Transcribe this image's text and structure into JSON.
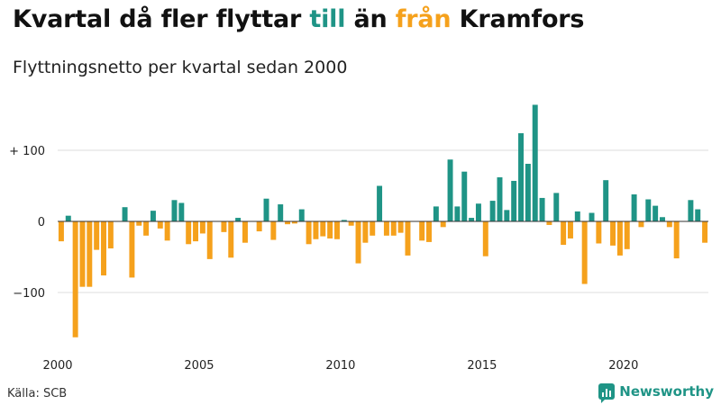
{
  "title": {
    "part1": "Kvartal då fler flyttar ",
    "till": "till",
    "part2": " än ",
    "fran": "från",
    "part3": " Kramfors"
  },
  "subtitle": "Flyttningsnetto per kvartal sedan 2000",
  "source": "Källa: SCB",
  "brand": "Newsworthy",
  "colors": {
    "positive": "#1f9486",
    "negative": "#f5a11c",
    "grid": "#dddddd",
    "zero": "#333333"
  },
  "chart_data": {
    "type": "bar",
    "ylim": [
      -170,
      170
    ],
    "y_ticks": [
      {
        "value": 100,
        "label": "+ 100"
      },
      {
        "value": 0,
        "label": "0"
      },
      {
        "value": -100,
        "label": "−100"
      }
    ],
    "x_ticks": [
      {
        "year": 2000,
        "label": "2000"
      },
      {
        "year": 2005,
        "label": "2005"
      },
      {
        "year": 2010,
        "label": "2010"
      },
      {
        "year": 2015,
        "label": "2015"
      },
      {
        "year": 2020,
        "label": "2020"
      }
    ],
    "start_year": 2000,
    "values": [
      -28,
      8,
      -163,
      -92,
      -92,
      -40,
      -76,
      -38,
      0,
      20,
      -79,
      -6,
      -20,
      15,
      -10,
      -27,
      30,
      26,
      -32,
      -28,
      -17,
      -53,
      0,
      -15,
      -51,
      5,
      -30,
      0,
      -14,
      32,
      -26,
      24,
      -4,
      -3,
      17,
      -32,
      -25,
      -21,
      -24,
      -25,
      2,
      -6,
      -59,
      -30,
      -20,
      50,
      -20,
      -20,
      -16,
      -48,
      0,
      -27,
      -29,
      21,
      -8,
      87,
      21,
      70,
      5,
      25,
      -49,
      29,
      62,
      16,
      57,
      124,
      81,
      164,
      33,
      -5,
      40,
      -33,
      -24,
      14,
      -88,
      12,
      -31,
      58,
      -34,
      -48,
      -39,
      38,
      -8,
      31,
      22,
      6,
      -8,
      -52,
      0,
      30,
      17,
      -30
    ]
  }
}
